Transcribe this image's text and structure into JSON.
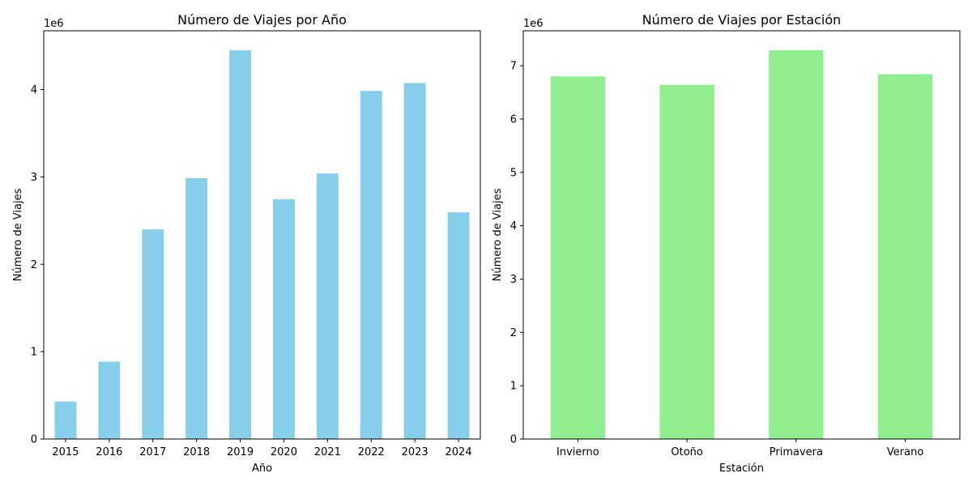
{
  "chart_data": [
    {
      "type": "bar",
      "title": "Número de Viajes por Año",
      "xlabel": "Año",
      "ylabel": "Número de Viajes",
      "offset_text": "1e6",
      "categories": [
        "2015",
        "2016",
        "2017",
        "2018",
        "2019",
        "2020",
        "2021",
        "2022",
        "2023",
        "2024"
      ],
      "values": [
        430000,
        885000,
        2400000,
        2985000,
        4450000,
        2745000,
        3040000,
        3985000,
        4075000,
        2595000
      ],
      "ylim": [
        0,
        4672500
      ],
      "yticks": [
        0,
        1000000,
        2000000,
        3000000,
        4000000
      ],
      "ytick_labels": [
        "0",
        "1",
        "2",
        "3",
        "4"
      ],
      "color": "#87CEEB",
      "grid": false,
      "legend": "none"
    },
    {
      "type": "bar",
      "title": "Número de Viajes por Estación",
      "xlabel": "Estación",
      "ylabel": "Número de Viajes",
      "offset_text": "1e6",
      "categories": [
        "Invierno",
        "Otoño",
        "Primavera",
        "Verano"
      ],
      "values": [
        6800000,
        6640000,
        7290000,
        6840000
      ],
      "ylim": [
        0,
        7654500
      ],
      "yticks": [
        0,
        1000000,
        2000000,
        3000000,
        4000000,
        5000000,
        6000000,
        7000000
      ],
      "ytick_labels": [
        "0",
        "1",
        "2",
        "3",
        "4",
        "5",
        "6",
        "7"
      ],
      "color": "#90EE90",
      "grid": false,
      "legend": "none"
    }
  ]
}
